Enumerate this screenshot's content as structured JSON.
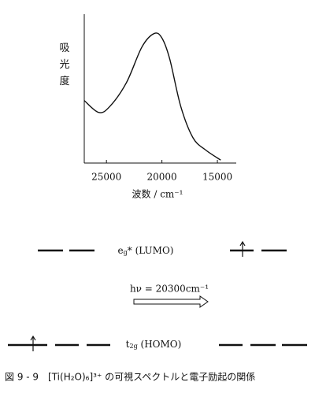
{
  "chart_data": {
    "type": "line",
    "y_label": "吸光度",
    "x_label": "波数 / cm⁻¹",
    "x": [
      27000,
      25700,
      24700,
      23200,
      21800,
      20700,
      20000,
      19300,
      18300,
      17200,
      16100,
      14700
    ],
    "values": [
      0.42,
      0.34,
      0.38,
      0.54,
      0.78,
      0.87,
      0.84,
      0.7,
      0.38,
      0.17,
      0.09,
      0.02
    ],
    "color": "#111111",
    "xlim": [
      27000,
      13300
    ],
    "ylim": [
      0,
      1
    ],
    "xticks": [
      25000,
      20000,
      15000
    ],
    "grid": false
  },
  "diagram": {
    "lumo": {
      "symbol": "e",
      "sub": "g",
      "rest": "* (LUMO)"
    },
    "transition": "hν = 20300cm⁻¹",
    "homo": {
      "symbol": "t",
      "sub": "2g",
      "rest": " (HOMO)"
    }
  },
  "caption": "図 9 - 9　[Ti(H₂O)₆]³⁺ の可視スペクトルと電子励起の関係"
}
